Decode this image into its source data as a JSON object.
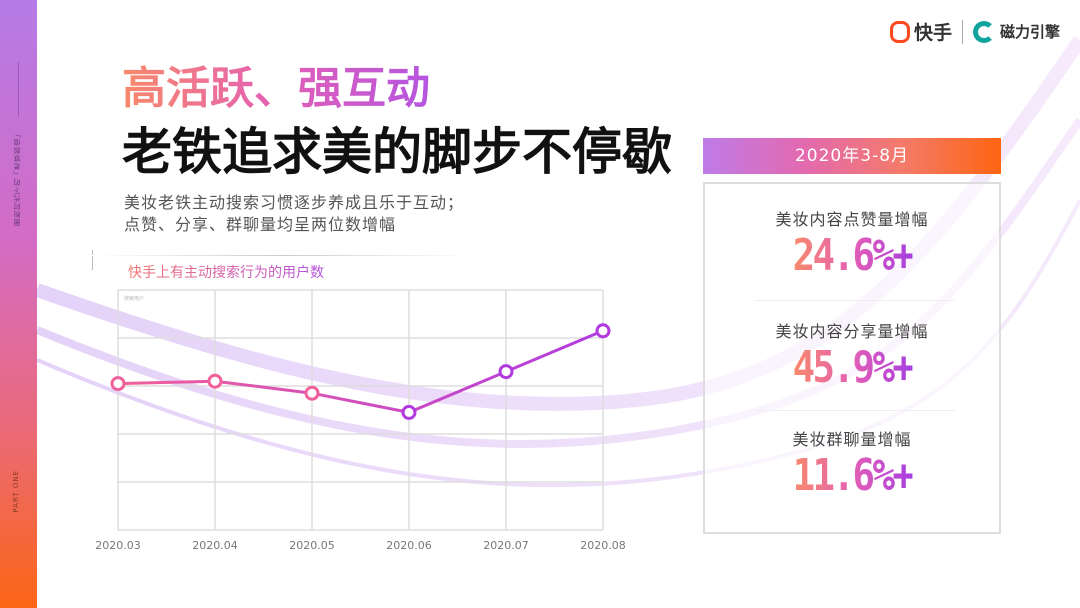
{
  "sidebar": {
    "vertical_text": "圈粉时代下的「老铁颜值」",
    "part_label": "PART ONE"
  },
  "logos": {
    "kuaishou": "快手",
    "cili": "磁力引擎"
  },
  "title": {
    "line1": "高活跃、强互动",
    "line2": "老铁追求美的脚步不停歇"
  },
  "subtitle": {
    "line1": "美妆老铁主动搜索习惯逐步养成且乐于互动；",
    "line2": "点赞、分享、群聊量均呈两位数增幅"
  },
  "chart_data": {
    "type": "line",
    "title": "快手上有主动搜索行为的用户数",
    "legend_note": "搜索用户",
    "categories": [
      "2020.03",
      "2020.04",
      "2020.05",
      "2020.06",
      "2020.07",
      "2020.08"
    ],
    "values": [
      61,
      62,
      57,
      49,
      66,
      83
    ],
    "ylim": [
      0,
      100
    ],
    "grid": true,
    "xlabel": "",
    "ylabel": "",
    "colors": {
      "start": "#f0609a",
      "end": "#b13be0"
    }
  },
  "stats": {
    "period": "2020年3-8月",
    "items": [
      {
        "label": "美妆内容点赞量增幅",
        "value": "24.6%+"
      },
      {
        "label": "美妆内容分享量增幅",
        "value": "45.9%+"
      },
      {
        "label": "美妆群聊量增幅",
        "value": "11.6%+"
      }
    ]
  }
}
